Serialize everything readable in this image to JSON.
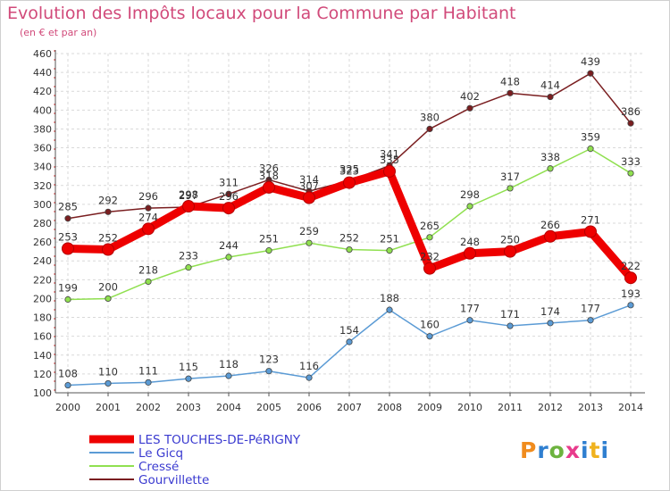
{
  "title": "Evolution des Impôts locaux pour la Commune par Habitant",
  "subtitle": "(en € et par an)",
  "logo": {
    "p": "P",
    "r": "r",
    "o": "o",
    "x": "x",
    "i": "i",
    "t": "t",
    "i2": "i"
  },
  "chart_data": {
    "type": "line",
    "categories": [
      "2000",
      "2001",
      "2002",
      "2003",
      "2004",
      "2005",
      "2006",
      "2007",
      "2008",
      "2009",
      "2010",
      "2011",
      "2012",
      "2013",
      "2014"
    ],
    "ylim": [
      100,
      460
    ],
    "yticks": [
      100,
      120,
      140,
      160,
      180,
      200,
      220,
      240,
      260,
      280,
      300,
      320,
      340,
      360,
      380,
      400,
      420,
      440,
      460
    ],
    "grid": true,
    "legend_position": "bottom-left",
    "series": [
      {
        "name": "LES TOUCHES-DE-PéRIGNY",
        "color": "#ee0000",
        "values": [
          253,
          252,
          274,
          298,
          296,
          318,
          307,
          323,
          335,
          232,
          248,
          250,
          266,
          271,
          222
        ]
      },
      {
        "name": "Le Gicq",
        "color": "#5b9bd5",
        "values": [
          108,
          110,
          111,
          115,
          118,
          123,
          116,
          154,
          188,
          160,
          177,
          171,
          174,
          177,
          193
        ]
      },
      {
        "name": "Cressé",
        "color": "#90e050",
        "values": [
          199,
          200,
          218,
          233,
          244,
          251,
          259,
          252,
          251,
          265,
          298,
          317,
          338,
          359,
          333
        ]
      },
      {
        "name": "Gourvillette",
        "color": "#7a1e20",
        "values": [
          285,
          292,
          296,
          297,
          311,
          326,
          314,
          325,
          341,
          380,
          402,
          418,
          414,
          439,
          386
        ]
      }
    ]
  }
}
